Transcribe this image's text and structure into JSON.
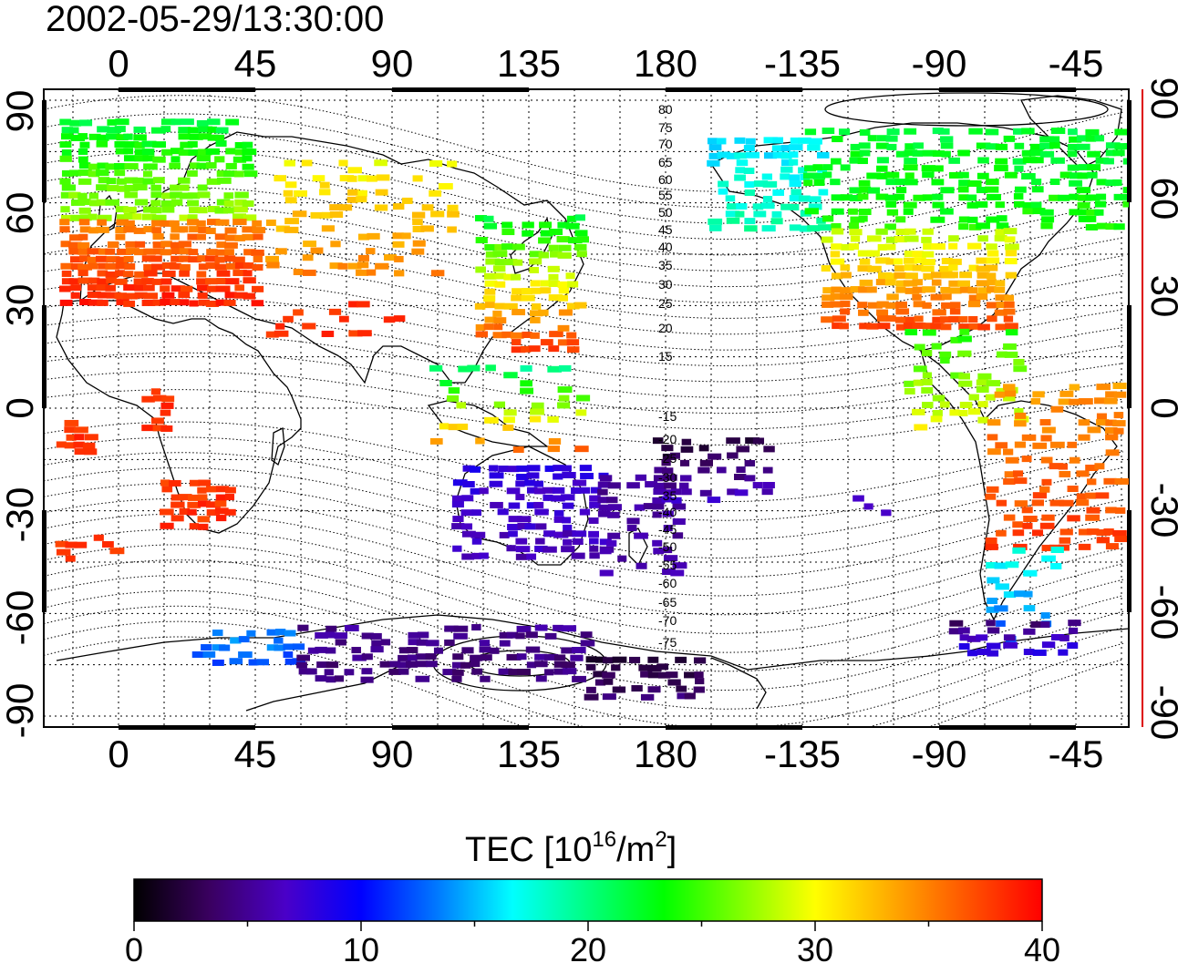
{
  "timestamp": "2002-05-29/13:30:00",
  "longitude_ticks": [
    "0",
    "45",
    "90",
    "135",
    "180",
    "-135",
    "-90",
    "-45"
  ],
  "latitude_ticks": [
    "90",
    "60",
    "30",
    "0",
    "-30",
    "-60",
    "-90"
  ],
  "magnetic_latitude_labels": [
    "80",
    "75",
    "70",
    "65",
    "60",
    "55",
    "50",
    "45",
    "40",
    "35",
    "30",
    "25",
    "20",
    "15",
    "-15",
    "-20",
    "-25",
    "-30",
    "-35",
    "-40",
    "-45",
    "-50",
    "-55",
    "-60",
    "-65",
    "-70",
    "-75"
  ],
  "colorbar": {
    "title_main": "TEC  [10",
    "title_exp1": "16",
    "title_mid": "/m",
    "title_exp2": "2",
    "title_end": "]",
    "tick_labels": [
      "0",
      "10",
      "20",
      "30",
      "40"
    ],
    "min": 0,
    "max": 40,
    "colors": [
      "#000000",
      "#3a0060",
      "#4a00c8",
      "#0000ff",
      "#0078ff",
      "#00ffff",
      "#00ff7f",
      "#00ff00",
      "#7fff00",
      "#ffff00",
      "#ffaa00",
      "#ff5500",
      "#ff0000"
    ]
  },
  "map_colors": {
    "frame": "#000000",
    "coast": "#000000",
    "grid": "#000000",
    "right_axis_accent": "#dd0000"
  }
}
